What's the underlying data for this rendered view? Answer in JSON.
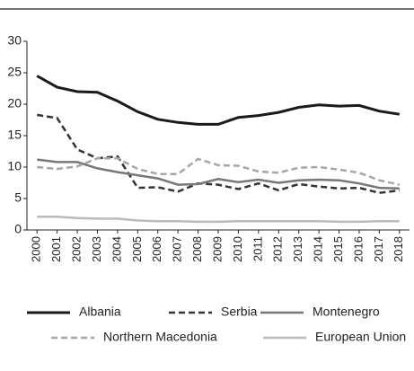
{
  "chart_data": {
    "type": "line",
    "categories": [
      "2000",
      "2001",
      "2002",
      "2003",
      "2004",
      "2005",
      "2006",
      "2007",
      "2008",
      "2009",
      "2010",
      "2011",
      "2012",
      "2013",
      "2014",
      "2015",
      "2016",
      "2017",
      "2018"
    ],
    "series": [
      {
        "name": "Albania",
        "color": "#1a1a1a",
        "dash": false,
        "values": [
          24.5,
          22.7,
          22.0,
          21.9,
          20.5,
          18.8,
          17.6,
          17.1,
          16.8,
          16.8,
          17.9,
          18.2,
          18.7,
          19.5,
          19.9,
          19.7,
          19.8,
          18.9,
          18.4
        ]
      },
      {
        "name": "Serbia",
        "color": "#333333",
        "dash": true,
        "values": [
          18.3,
          17.8,
          12.8,
          11.4,
          11.7,
          6.7,
          6.8,
          6.1,
          7.4,
          7.2,
          6.5,
          7.4,
          6.3,
          7.3,
          6.9,
          6.6,
          6.7,
          5.9,
          6.3
        ]
      },
      {
        "name": "Montenegro",
        "color": "#777777",
        "dash": false,
        "values": [
          11.2,
          10.8,
          10.8,
          9.8,
          9.2,
          8.7,
          8.2,
          7.2,
          7.3,
          8.1,
          7.6,
          8.0,
          7.5,
          7.9,
          8.0,
          7.9,
          7.4,
          6.7,
          6.6
        ]
      },
      {
        "name": "Northern Macedonia",
        "color": "#a6a6a6",
        "dash": true,
        "values": [
          10.0,
          9.7,
          10.1,
          11.4,
          11.4,
          9.7,
          8.9,
          8.9,
          11.3,
          10.3,
          10.2,
          9.3,
          9.1,
          9.9,
          10.0,
          9.6,
          9.1,
          7.9,
          7.2
        ]
      },
      {
        "name": "European Union",
        "color": "#bbbbbb",
        "dash": false,
        "values": [
          2.1,
          2.1,
          1.9,
          1.8,
          1.8,
          1.5,
          1.4,
          1.4,
          1.3,
          1.3,
          1.4,
          1.4,
          1.4,
          1.4,
          1.4,
          1.3,
          1.3,
          1.4,
          1.4
        ]
      }
    ],
    "ylim": [
      0,
      30
    ],
    "yticks": [
      0,
      5,
      10,
      15,
      20,
      25,
      30
    ],
    "grid": false
  }
}
